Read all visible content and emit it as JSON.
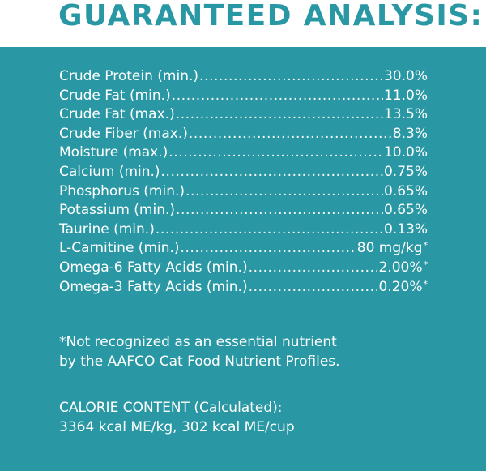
{
  "title": "GUARANTEED ANALYSIS:",
  "colors": {
    "panel_background": "#2a98a4",
    "title_text": "#2a98a4",
    "body_text": "#ffffff"
  },
  "analysis": [
    {
      "label": "Crude Protein (min.)",
      "value": "30.0%",
      "note": ""
    },
    {
      "label": "Crude Fat (min.)",
      "value": "11.0%",
      "note": ""
    },
    {
      "label": "Crude Fat (max.)",
      "value": "13.5%",
      "note": ""
    },
    {
      "label": "Crude Fiber (max.)",
      "value": "8.3%",
      "note": ""
    },
    {
      "label": "Moisture (max.)",
      "value": "10.0%",
      "note": ""
    },
    {
      "label": "Calcium (min.)",
      "value": "0.75%",
      "note": ""
    },
    {
      "label": "Phosphorus (min.)",
      "value": "0.65%",
      "note": ""
    },
    {
      "label": "Potassium (min.)",
      "value": "0.65%",
      "note": ""
    },
    {
      "label": "Taurine (min.)",
      "value": "0.13%",
      "note": ""
    },
    {
      "label": "L-Carnitine (min.)",
      "value": "80 mg/kg",
      "note": "*"
    },
    {
      "label": "Omega-6 Fatty Acids (min.)",
      "value": "2.00%",
      "note": "*"
    },
    {
      "label": "Omega-3 Fatty Acids (min.)",
      "value": "0.20%",
      "note": "*"
    }
  ],
  "footnote": {
    "line1": "*Not recognized as an essential nutrient",
    "line2": "by the AAFCO Cat Food Nutrient Profiles."
  },
  "calorie": {
    "heading": "CALORIE CONTENT (Calculated):",
    "values": "3364 kcal ME/kg, 302 kcal ME/cup"
  }
}
